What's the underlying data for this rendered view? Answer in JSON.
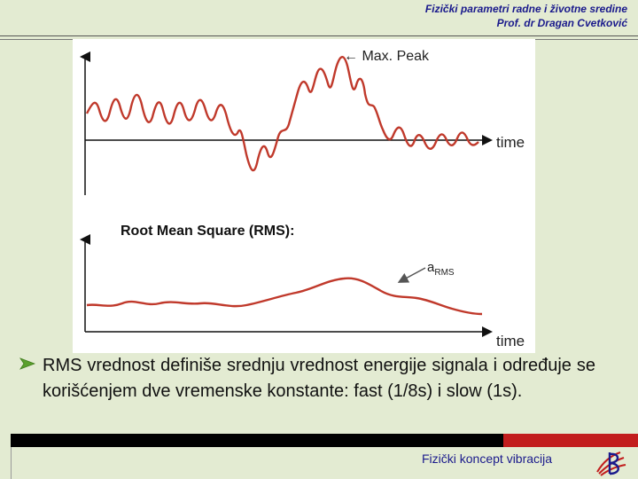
{
  "header": {
    "line1": "Fizički parametri radne i životne sredine",
    "line2": "Prof. dr Dragan Cvetković"
  },
  "figure": {
    "top_chart": {
      "peak_label": "← Max. Peak",
      "xlabel": "time"
    },
    "rms_title": "Root Mean Square (RMS):",
    "bottom_chart": {
      "series_label_main": "a",
      "series_label_sub": "RMS",
      "xlabel": "time"
    },
    "colors": {
      "signal": "#c0392b",
      "axis": "#111111",
      "arrow": "#555555"
    }
  },
  "body": {
    "bullet_icon": "arrow-bullet-icon",
    "text": "RMS vrednost definiše srednju vrednost energije signala i određuje se korišćenjem dve vremenske konstante: fast (1/8s) i slow (1s)."
  },
  "footer": {
    "title": "Fizički koncept vibracija",
    "colors": {
      "bar_dark": "#000000",
      "bar_accent": "#c21d1d"
    }
  }
}
